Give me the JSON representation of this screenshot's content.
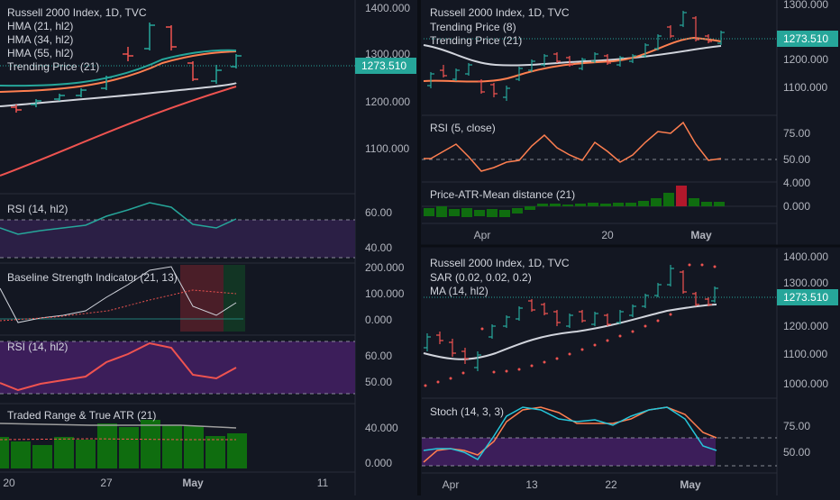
{
  "colors": {
    "background": "#131722",
    "grid": "#2a2e39",
    "text": "#d1d4dc",
    "axis_text": "#b2b5be",
    "price_label_bg": "#26a69a",
    "candle_up": "#26a69a",
    "candle_down": "#ef5350",
    "rsi_band": "#2b1f45",
    "rsi_band_strong": "#3c1e5a",
    "hma21": "#ff7f50",
    "hma34": "#26a69a",
    "hma55": "#ef5350",
    "trending": "#d1d4dc",
    "volume_green": "#0f6d0f",
    "volume_red": "#b2182b"
  },
  "left": {
    "main": {
      "title": "Russell 2000 Index, 1D, TVC",
      "legend": [
        "HMA (21, hl2)",
        "HMA (34, hl2)",
        "HMA (55, hl2)",
        "Trending Price (21)"
      ],
      "price_label": "1273.510",
      "y_ticks": [
        "1400.000",
        "1300.000",
        "1200.000",
        "1100.000"
      ]
    },
    "rsi1": {
      "title": "RSI (14, hl2)",
      "y_ticks": [
        "60.00",
        "40.00"
      ]
    },
    "bsi": {
      "title": "Baseline Strength Indicator (21, 13)",
      "y_ticks": [
        "200.000",
        "100.000",
        "0.000"
      ]
    },
    "rsi2": {
      "title": "RSI (14, hl2)",
      "y_ticks": [
        "60.00",
        "50.00"
      ]
    },
    "tr": {
      "title": "Traded Range & True ATR (21)",
      "y_ticks": [
        "40.000",
        "0.000"
      ]
    },
    "x_labels": [
      "20",
      "27",
      "May",
      "11"
    ]
  },
  "right_top": {
    "main": {
      "title": "Russell 2000 Index, 1D, TVC",
      "legend": [
        "Trending Price (8)",
        "Trending Price (21)"
      ],
      "price_label": "1273.510",
      "y_ticks": [
        "1300.000",
        "1200.000",
        "1100.000"
      ]
    },
    "rsi": {
      "title": "RSI (5, close)",
      "y_ticks": [
        "75.00",
        "50.00"
      ]
    },
    "atr": {
      "title": "Price-ATR-Mean distance (21)",
      "y_ticks": [
        "4.000",
        "0.000"
      ]
    },
    "x_labels": [
      "Apr",
      "20",
      "May"
    ]
  },
  "right_bottom": {
    "main": {
      "title": "Russell 2000 Index, 1D, TVC",
      "legend": [
        "SAR (0.02, 0.02, 0.2)",
        "MA (14, hl2)"
      ],
      "price_label": "1273.510",
      "y_ticks": [
        "1400.000",
        "1300.000",
        "1200.000",
        "1100.000",
        "1000.000"
      ]
    },
    "stoch": {
      "title": "Stoch (14, 3, 3)",
      "y_ticks": [
        "75.00",
        "50.00"
      ]
    },
    "x_labels": [
      "Apr",
      "13",
      "22",
      "May"
    ]
  }
}
